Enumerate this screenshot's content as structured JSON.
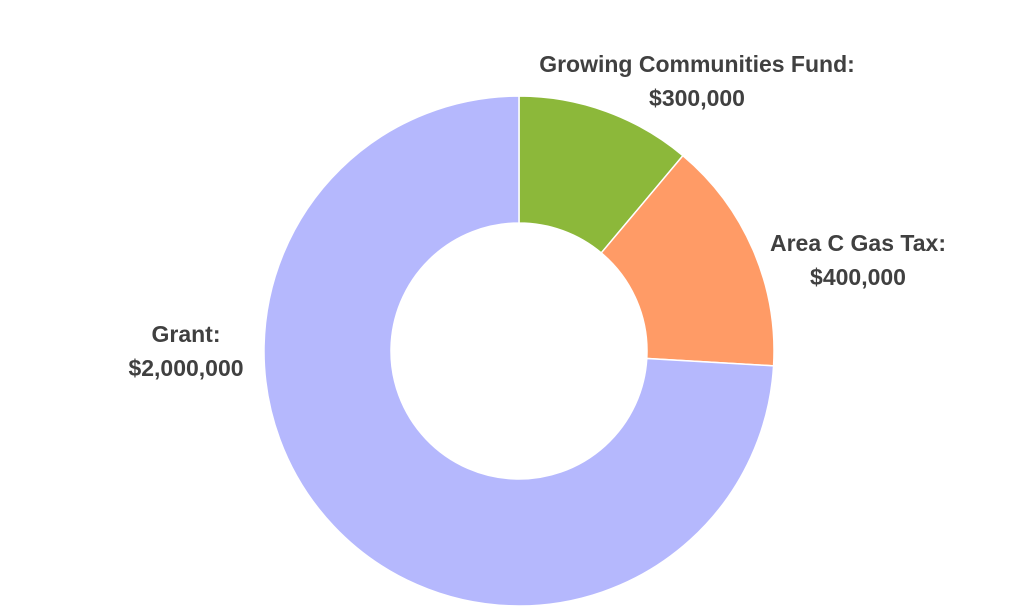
{
  "chart_data": {
    "type": "pie",
    "donut": true,
    "slices": [
      {
        "label": "Growing Communities Fund:",
        "value_text": "$300,000",
        "value": 300000,
        "color": "#8cb83a"
      },
      {
        "label": "Area C Gas Tax:",
        "value_text": "$400,000",
        "value": 400000,
        "color": "#ff9b66"
      },
      {
        "label": "Grant:",
        "value_text": "$2,000,000",
        "value": 2000000,
        "color": "#b5b8fd"
      }
    ],
    "start": "top, clockwise",
    "title": "",
    "legend": "none"
  }
}
